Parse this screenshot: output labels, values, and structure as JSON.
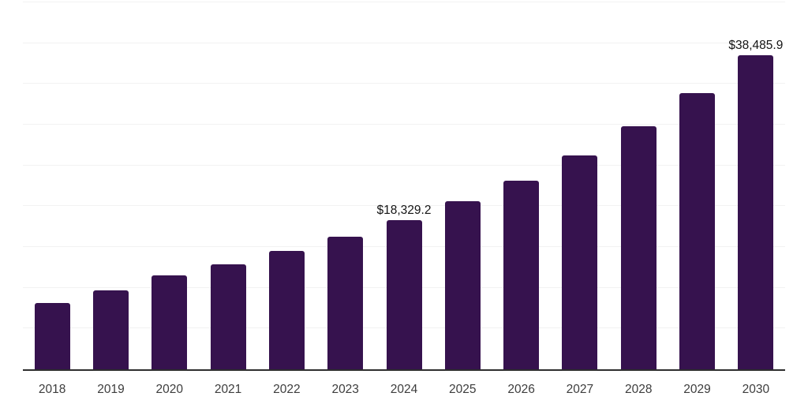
{
  "chart": {
    "background": "#ffffff",
    "bar_color": "#36124E",
    "grid_color": "#f2f2f2",
    "axis_line_color": "#2e2e2e",
    "tick_label_color": "#3d3d3d",
    "data_label_color": "#141414"
  },
  "chart_data": {
    "type": "bar",
    "title": "",
    "xlabel": "",
    "ylabel": "",
    "categories": [
      "2018",
      "2019",
      "2020",
      "2021",
      "2022",
      "2023",
      "2024",
      "2025",
      "2026",
      "2027",
      "2028",
      "2029",
      "2030"
    ],
    "values": [
      8150,
      9700,
      11550,
      12900,
      14550,
      16300,
      18329.2,
      20650,
      23150,
      26250,
      29800,
      33900,
      38485.9
    ],
    "data_labels": {
      "2024": "$18,329.2",
      "2030": "$38,485.9"
    },
    "ylim": [
      0,
      45000
    ],
    "grid_step": 5000,
    "grid": true,
    "legend": "none",
    "y_axis_labels_visible": false
  }
}
